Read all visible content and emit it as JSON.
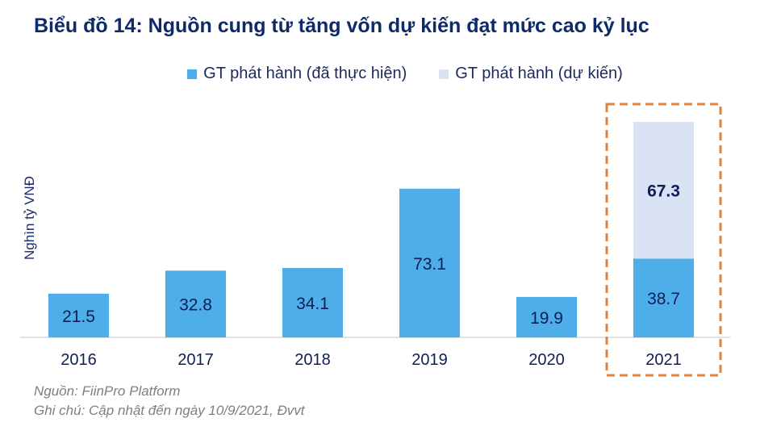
{
  "title": "Biểu đồ 14: Nguồn cung từ tăng vốn dự kiến đạt mức cao kỷ lục",
  "notes": {
    "source": "Nguồn: FiinPro Platform",
    "remark": "Ghi chú: Cập nhật đến ngày 10/9/2021, Đvvt"
  },
  "chart_data": {
    "type": "bar",
    "stacked": true,
    "title": "Biểu đồ 14: Nguồn cung từ tăng vốn dự kiến đạt mức cao kỷ lục",
    "xlabel": "",
    "ylabel": "Nghìn tỷ VNĐ",
    "categories": [
      "2016",
      "2017",
      "2018",
      "2019",
      "2020",
      "2021"
    ],
    "series": [
      {
        "name": "GT phát hành (đã thực hiện)",
        "color": "#4eaeea",
        "values": [
          21.5,
          32.8,
          34.1,
          73.1,
          19.9,
          38.7
        ],
        "labels": [
          "21.5",
          "32.8",
          "34.1",
          "73.1",
          "19.9",
          "38.7"
        ]
      },
      {
        "name": "GT phát hành (dự kiến)",
        "color": "#dae3f3",
        "values": [
          null,
          null,
          null,
          null,
          null,
          67.3
        ],
        "labels": [
          "",
          "",
          "",
          "",
          "",
          "67.3"
        ]
      }
    ],
    "ylim": [
      0,
      110
    ],
    "grid": false,
    "legend_position": "top",
    "highlight": {
      "category": "2021",
      "style": "dashed box",
      "color": "#e0843f"
    }
  }
}
